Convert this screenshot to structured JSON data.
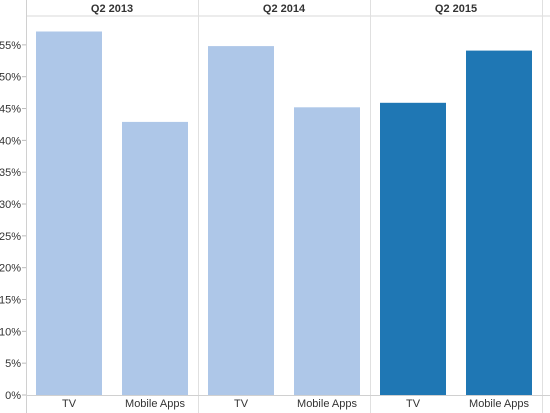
{
  "chart_data": {
    "type": "bar",
    "panels": [
      {
        "title": "Q2 2013",
        "categories": [
          "TV",
          "Mobile Apps"
        ],
        "values": [
          57.1,
          42.9
        ],
        "colors": [
          "#aec7e8",
          "#aec7e8"
        ]
      },
      {
        "title": "Q2 2014",
        "categories": [
          "TV",
          "Mobile Apps"
        ],
        "values": [
          54.8,
          45.2
        ],
        "colors": [
          "#aec7e8",
          "#aec7e8"
        ]
      },
      {
        "title": "Q2 2015",
        "categories": [
          "TV",
          "Mobile Apps"
        ],
        "values": [
          45.9,
          54.1
        ],
        "colors": [
          "#1f77b4",
          "#1f77b4"
        ]
      }
    ],
    "y_ticks": [
      "0%",
      "5%",
      "10%",
      "15%",
      "20%",
      "25%",
      "30%",
      "35%",
      "40%",
      "45%",
      "50%",
      "55%"
    ],
    "y_tick_values": [
      0,
      5,
      10,
      15,
      20,
      25,
      30,
      35,
      40,
      45,
      50,
      55
    ],
    "ylim": [
      0,
      60
    ],
    "grid": false,
    "title": "",
    "xlabel": "",
    "ylabel": ""
  }
}
